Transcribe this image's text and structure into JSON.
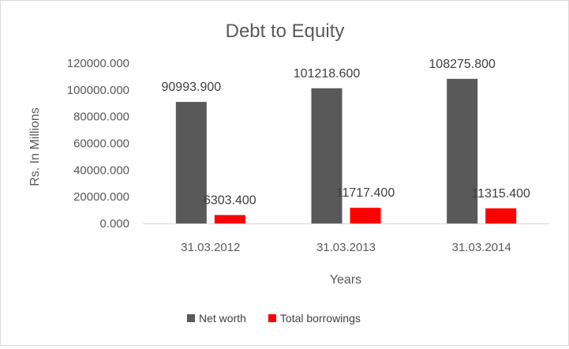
{
  "chart_data": {
    "type": "bar",
    "title": "Debt to Equity",
    "xlabel": "Years",
    "ylabel": "Rs. In Millions",
    "categories": [
      "31.03.2012",
      "31.03.2013",
      "31.03.2014"
    ],
    "series": [
      {
        "name": "Net worth",
        "color": "#595959",
        "values": [
          90993.9,
          101218.6,
          108275.8
        ]
      },
      {
        "name": "Total borrowings",
        "color": "#ff0000",
        "values": [
          6303.4,
          11717.4,
          11315.4
        ]
      }
    ],
    "data_labels": [
      [
        "90993.900",
        "101218.600",
        "108275.800"
      ],
      [
        "6303.400",
        "11717.400",
        "11315.400"
      ]
    ],
    "y_ticks": [
      "0.000",
      "20000.000",
      "40000.000",
      "60000.000",
      "80000.000",
      "100000.000",
      "120000.000"
    ],
    "ylim": [
      0,
      120000
    ],
    "grid": false,
    "legend_position": "bottom"
  }
}
